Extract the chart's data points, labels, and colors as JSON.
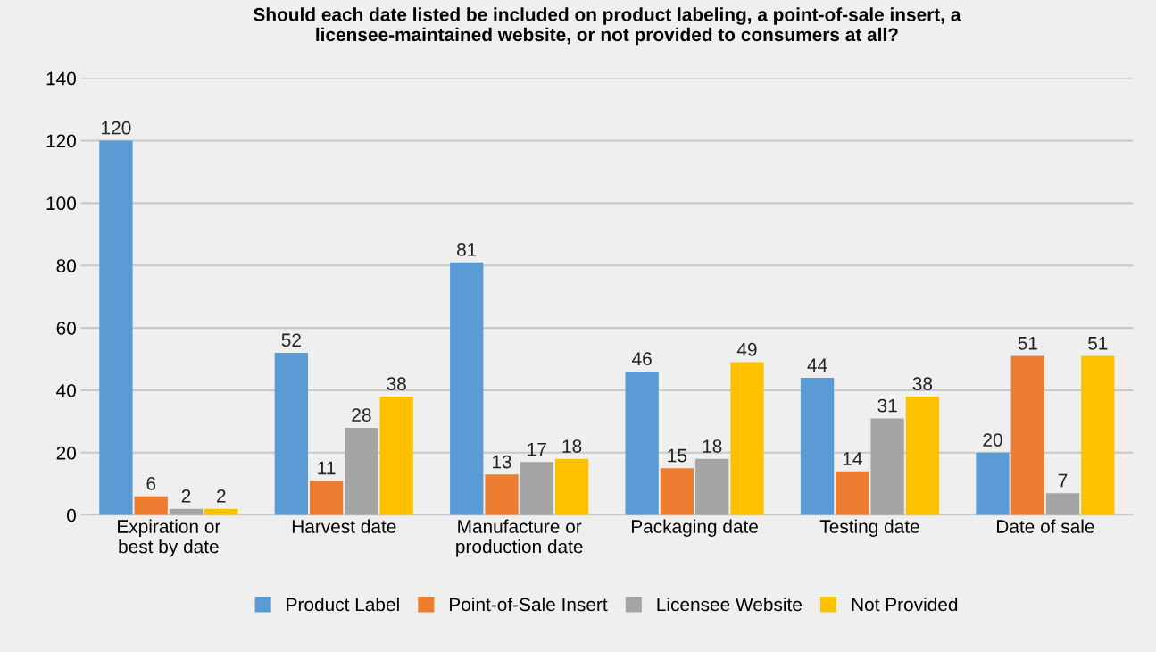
{
  "chart_data": {
    "type": "bar",
    "title": "Should each date listed be included on product labeling, a point-of-sale insert, a\nlicensee-maintained website, or not provided to consumers at all?",
    "categories": [
      "Expiration or\nbest by date",
      "Harvest date",
      "Manufacture or\nproduction date",
      "Packaging date",
      "Testing date",
      "Date of sale"
    ],
    "series": [
      {
        "name": "Product Label",
        "color": "#5b9bd5",
        "values": [
          120,
          52,
          81,
          46,
          44,
          20
        ]
      },
      {
        "name": "Point-of-Sale Insert",
        "color": "#ed7d31",
        "values": [
          6,
          11,
          13,
          15,
          14,
          51
        ]
      },
      {
        "name": "Licensee Website",
        "color": "#a5a5a5",
        "values": [
          2,
          28,
          17,
          18,
          31,
          7
        ]
      },
      {
        "name": "Not Provided",
        "color": "#ffc000",
        "values": [
          2,
          38,
          18,
          49,
          38,
          51
        ]
      }
    ],
    "ylim": [
      0,
      140
    ],
    "yticks": [
      0,
      20,
      40,
      60,
      80,
      100,
      120,
      140
    ],
    "grid": "y",
    "legend": "bottom",
    "data_labels": true
  }
}
